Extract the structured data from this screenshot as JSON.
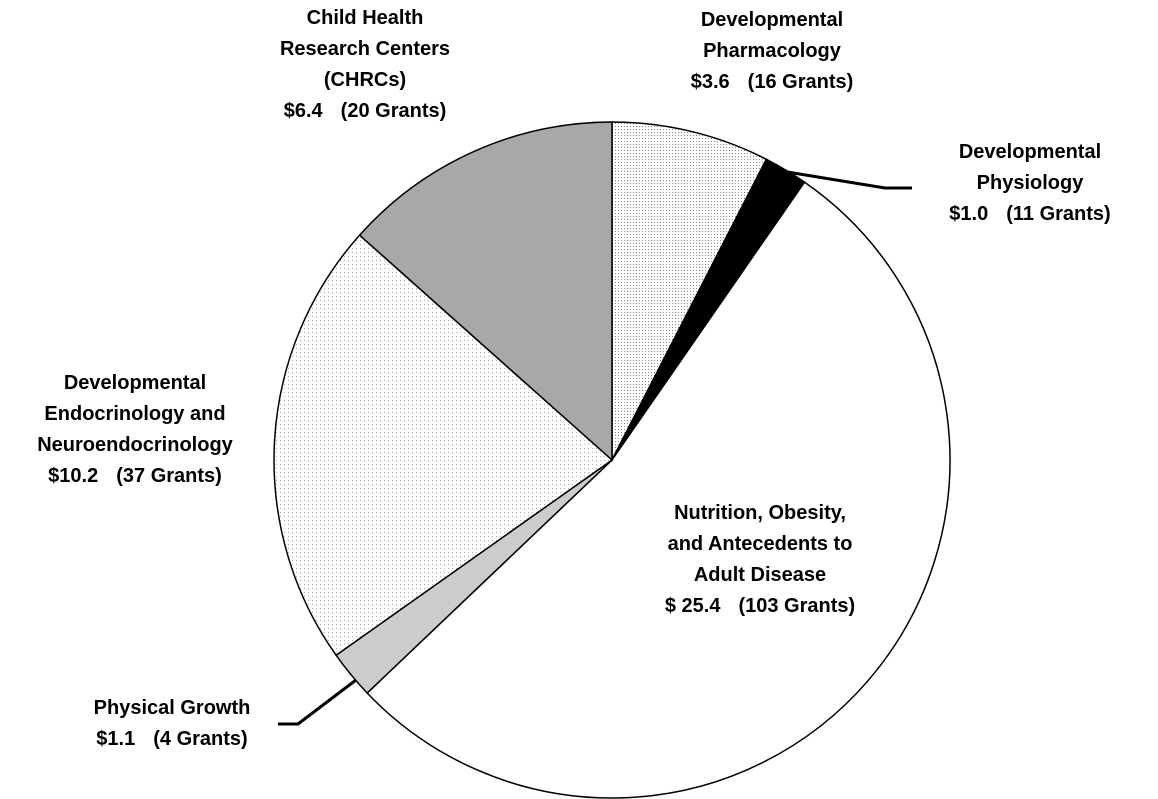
{
  "chart_data": {
    "type": "pie",
    "categories": [
      "Developmental\nPharmacology",
      "Developmental\nPhysiology",
      "Nutrition, Obesity,\nand Antecedents to\nAdult Disease",
      "Physical Growth",
      "Developmental\nEndocrinology and\nNeuroendocrinology",
      "Child Health\nResearch Centers\n(CHRCs)"
    ],
    "values": [
      3.6,
      1.0,
      25.4,
      1.1,
      10.2,
      6.4
    ],
    "value_labels": [
      "$3.6",
      "$1.0",
      "$ 25.4",
      "$1.1",
      "$10.2",
      "$6.4"
    ],
    "grants": [
      "(16 Grants)",
      "(11 Grants)",
      "(103 Grants)",
      "(4 Grants)",
      "(37 Grants)",
      "(20 Grants)"
    ],
    "colors": [
      "#d4d4d4",
      "#000000",
      "#ffffff",
      "#cccccc",
      "#ececec",
      "#a8a8a8"
    ]
  }
}
